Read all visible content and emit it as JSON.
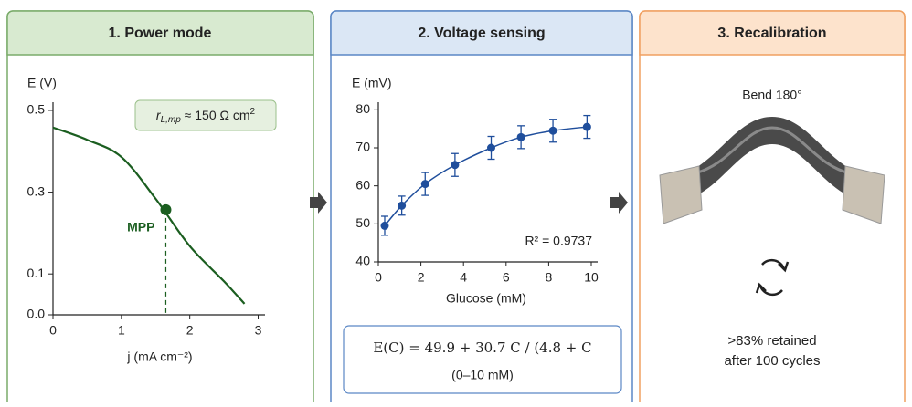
{
  "panels": [
    {
      "title": "1. Power mode"
    },
    {
      "title": "2. Voltage sensing",
      "equation": "E(C) = 49.9 + 30.7 C / (4.8 + C",
      "range": "(0–10 mM)"
    },
    {
      "title": "3. Recalibration",
      "caption": "Bend 180°",
      "note_lines": [
        ">83% retained",
        "after 100 cycles"
      ]
    }
  ],
  "chart_data": [
    {
      "type": "line",
      "ylabel": "E (V)",
      "xlabel": "j (mA cm⁻²)",
      "x": [
        0,
        0.5,
        1,
        1.5,
        2,
        2.5,
        2.8
      ],
      "values": [
        0.458,
        0.428,
        0.386,
        0.284,
        0.168,
        0.082,
        0.027
      ],
      "color": "#1b5e20",
      "marker": {
        "x": 1.65,
        "y": 0.257,
        "label": "MPP"
      },
      "annotation": {
        "symbol": "r",
        "subscript": "L,mp",
        "text": " ≈ 150 Ω cm",
        "superscript": "2"
      },
      "xlim": [
        0,
        3.1
      ],
      "ylim": [
        0,
        0.52
      ],
      "xticks": [
        0,
        1,
        2,
        3
      ],
      "yticks": [
        {
          "value": 0,
          "label": "0.0"
        },
        0.1,
        0.3,
        0.5
      ]
    },
    {
      "type": "scatter",
      "ylabel": "E (mV)",
      "xlabel": "Glucose (mM)",
      "x": [
        0.3,
        1.1,
        2.2,
        3.6,
        5.3,
        6.7,
        8.2,
        9.8
      ],
      "values": [
        49.5,
        54.8,
        60.5,
        65.5,
        70,
        72.8,
        74.5,
        75.5
      ],
      "errors": [
        2.5,
        2.5,
        3,
        3,
        3,
        3,
        3,
        3
      ],
      "color": "#1f4e9c",
      "annotation": "R² = 0.9737",
      "xlim": [
        0,
        10.3
      ],
      "ylim": [
        40,
        82
      ],
      "xticks": [
        0,
        2,
        4,
        6,
        8,
        10
      ],
      "yticks": [
        40,
        50,
        60,
        70,
        80
      ]
    }
  ]
}
